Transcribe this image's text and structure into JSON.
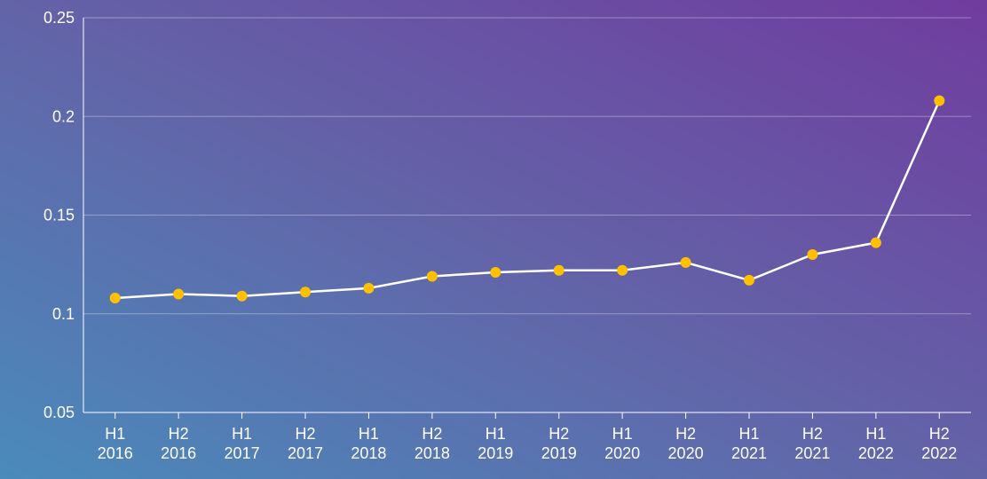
{
  "chart_data": {
    "type": "line",
    "categories": [
      "H1 2016",
      "H2 2016",
      "H1 2017",
      "H2 2017",
      "H1 2018",
      "H2 2018",
      "H1 2019",
      "H2 2019",
      "H1 2020",
      "H2 2020",
      "H1 2021",
      "H2 2021",
      "H1 2022",
      "H2 2022"
    ],
    "values": [
      0.108,
      0.11,
      0.109,
      0.111,
      0.113,
      0.119,
      0.121,
      0.122,
      0.122,
      0.126,
      0.117,
      0.13,
      0.136,
      0.208
    ],
    "color": "#ffffff",
    "marker_color": "#ffc000",
    "ylim": [
      0.05,
      0.25
    ],
    "yticks": [
      0.05,
      0.1,
      0.15,
      0.2,
      0.25
    ],
    "grid": true
  }
}
